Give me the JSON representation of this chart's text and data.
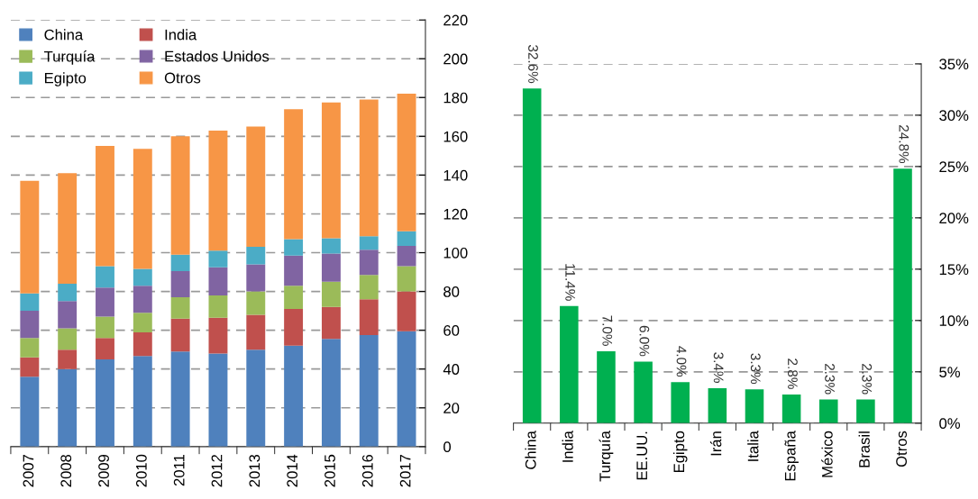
{
  "chart_data": [
    {
      "type": "bar",
      "stacked": true,
      "categories": [
        "2007",
        "2008",
        "2009",
        "2010",
        "2011",
        "2012",
        "2013",
        "2014",
        "2015",
        "2016",
        "2017"
      ],
      "series": [
        {
          "name": "China",
          "color": "#4f81bd",
          "values": [
            36,
            40,
            45,
            46.7,
            49,
            48,
            50,
            52,
            55.5,
            57.5,
            59.5
          ]
        },
        {
          "name": "India",
          "color": "#c0504d",
          "values": [
            10,
            10,
            11,
            12.2,
            17,
            18.5,
            18,
            19,
            16.5,
            18.5,
            20.5
          ]
        },
        {
          "name": "Turquía",
          "color": "#9bbb59",
          "values": [
            10,
            11,
            11,
            10.1,
            11,
            11.5,
            12,
            12,
            13,
            12.5,
            13
          ]
        },
        {
          "name": "Estados Unidos",
          "color": "#8064a2",
          "values": [
            14,
            14,
            15,
            14,
            13.5,
            14.5,
            14,
            15.5,
            14.5,
            13,
            10.5
          ]
        },
        {
          "name": "Egipto",
          "color": "#4bacc6",
          "values": [
            9,
            9,
            11,
            8.6,
            8.5,
            8.5,
            9,
            8.5,
            8,
            7,
            7.5
          ]
        },
        {
          "name": "Otros",
          "color": "#f79646",
          "values": [
            58,
            57,
            62,
            61.9,
            61,
            62,
            62,
            67,
            70,
            70.5,
            71
          ]
        }
      ],
      "ylim": [
        0,
        220
      ],
      "yticks": [
        0,
        20,
        40,
        60,
        80,
        100,
        120,
        140,
        160,
        180,
        200,
        220
      ],
      "grid": "y",
      "legend": "top left"
    },
    {
      "type": "bar",
      "categories": [
        "China",
        "India",
        "Turquía",
        "EE.UU.",
        "Egipto",
        "Irán",
        "Italia",
        "España",
        "México",
        "Brasil",
        "Otros"
      ],
      "values": [
        32.6,
        11.4,
        7.0,
        6.0,
        4.0,
        3.4,
        3.3,
        2.8,
        2.3,
        2.3,
        24.8
      ],
      "color": "#00b050",
      "value_labels": [
        "32.6%",
        "11.4%",
        "7.0%",
        "6.0%",
        "4.0%",
        "3.4%",
        "3.3%",
        "2.8%",
        "2.3%",
        "2.3%",
        "24.8%"
      ],
      "ylim": [
        0,
        35
      ],
      "yticks": [
        {
          "value": 0,
          "label": "0%"
        },
        {
          "value": 5,
          "label": "5%"
        },
        {
          "value": 10,
          "label": "10%"
        },
        {
          "value": 15,
          "label": "15%"
        },
        {
          "value": 20,
          "label": "20%"
        },
        {
          "value": 25,
          "label": "25%"
        },
        {
          "value": 30,
          "label": "30%"
        },
        {
          "value": 35,
          "label": "35%"
        }
      ],
      "grid": "y"
    }
  ]
}
